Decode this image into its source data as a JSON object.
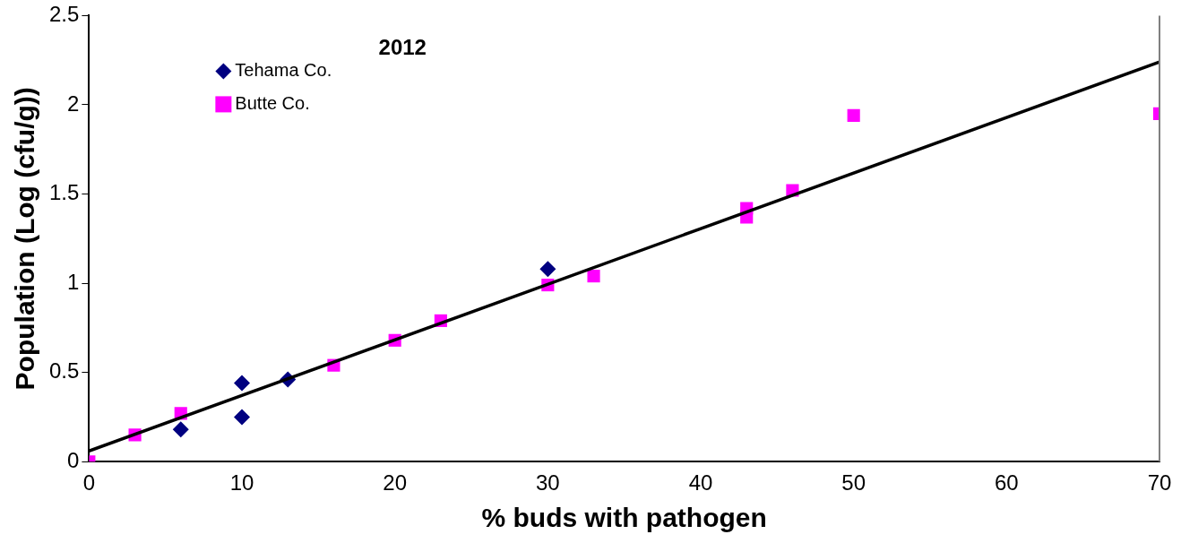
{
  "chart_data": {
    "type": "scatter",
    "title": "2012",
    "xlabel": "% buds with pathogen",
    "ylabel": "Population (Log (cfu/g))",
    "xlim": [
      0,
      70
    ],
    "xticks": [
      0,
      10,
      20,
      30,
      40,
      50,
      60,
      70
    ],
    "ylim": [
      0,
      2.5
    ],
    "yticks": [
      0,
      0.5,
      1,
      1.5,
      2,
      2.5
    ],
    "grid": false,
    "legend": "top left",
    "series": [
      {
        "name": "Tehama Co.",
        "color": "#000080",
        "marker": "diamond",
        "x": [
          6,
          10,
          10,
          13,
          30
        ],
        "values": [
          0.18,
          0.44,
          0.25,
          0.46,
          1.08
        ]
      },
      {
        "name": "Butte Co.",
        "color": "#ff00ff",
        "marker": "square",
        "x": [
          0,
          3,
          6,
          16,
          20,
          23,
          30,
          33,
          43,
          43,
          46,
          50,
          70
        ],
        "values": [
          0,
          0.15,
          0.27,
          0.54,
          0.68,
          0.79,
          0.99,
          1.04,
          1.37,
          1.42,
          1.52,
          1.94,
          1.95
        ]
      },
      {
        "type": "line",
        "color": "#000000",
        "marker": "none",
        "x": [
          0,
          70
        ],
        "values": [
          0.06,
          2.24
        ]
      }
    ]
  }
}
